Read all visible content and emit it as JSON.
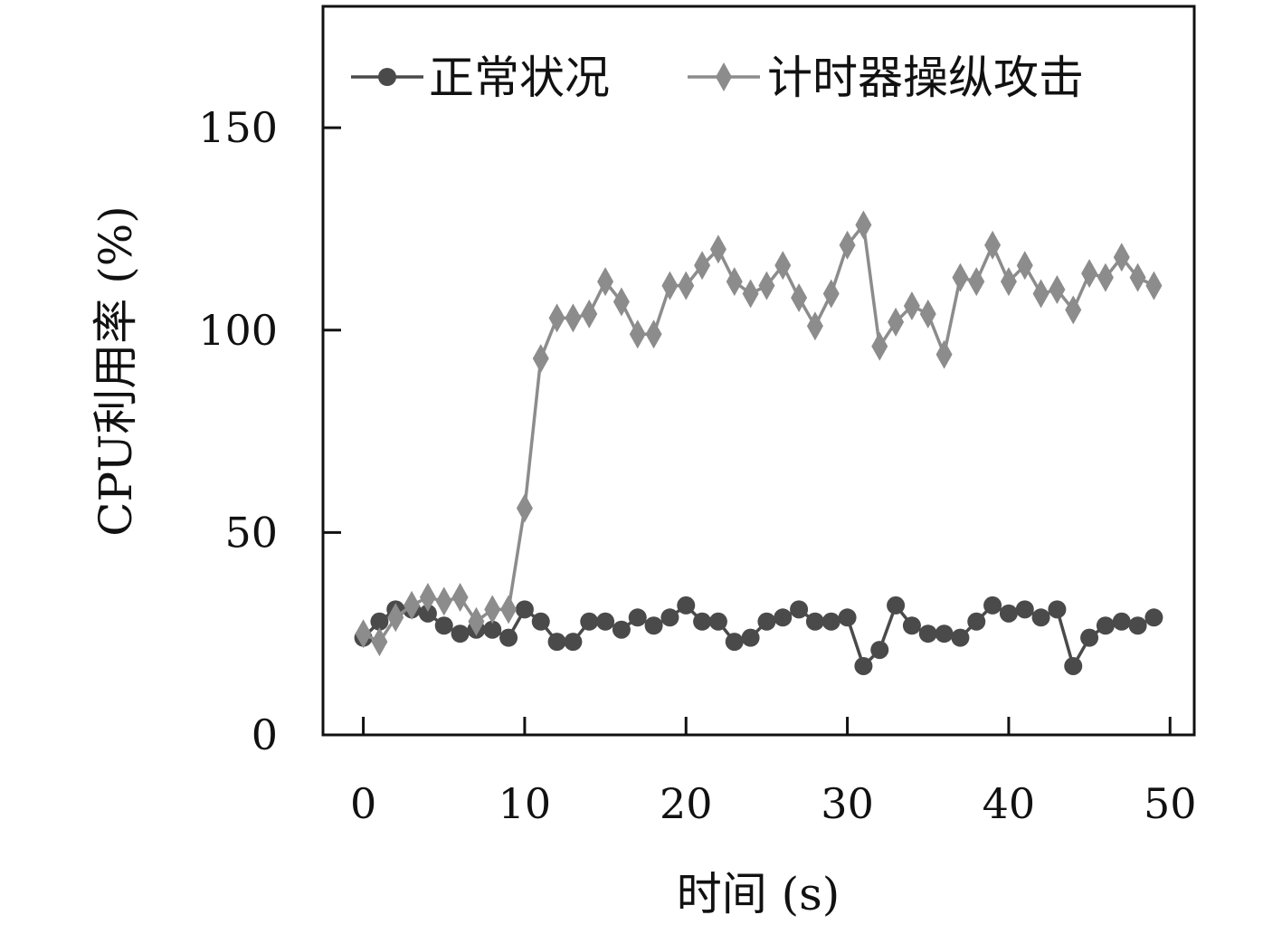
{
  "chart_data": {
    "type": "line",
    "xlabel": "时间 (s)",
    "ylabel": "CPU利用率 (%)",
    "xlim": [
      -2.5,
      51.5
    ],
    "ylim": [
      0,
      180
    ],
    "xticks": [
      0,
      10,
      20,
      30,
      40,
      50
    ],
    "yticks": [
      0,
      50,
      100,
      150
    ],
    "grid": false,
    "legend_position": "top",
    "x": [
      0,
      1,
      2,
      3,
      4,
      5,
      6,
      7,
      8,
      9,
      10,
      11,
      12,
      13,
      14,
      15,
      16,
      17,
      18,
      19,
      20,
      21,
      22,
      23,
      24,
      25,
      26,
      27,
      28,
      29,
      30,
      31,
      32,
      33,
      34,
      35,
      36,
      37,
      38,
      39,
      40,
      41,
      42,
      43,
      44,
      45,
      46,
      47,
      48,
      49
    ],
    "series": [
      {
        "name": "正常状况",
        "marker": "circle",
        "color": "#4a4a4a",
        "values": [
          24,
          28,
          31,
          31,
          30,
          27,
          25,
          26,
          26,
          24,
          31,
          28,
          23,
          23,
          28,
          28,
          26,
          29,
          27,
          29,
          32,
          28,
          28,
          23,
          24,
          28,
          29,
          31,
          28,
          28,
          29,
          17,
          21,
          32,
          27,
          25,
          25,
          24,
          28,
          32,
          30,
          31,
          29,
          31,
          17,
          24,
          27,
          28,
          27,
          29
        ]
      },
      {
        "name": "计时器操纵攻击",
        "marker": "diamond",
        "color": "#8c8c8c",
        "values": [
          25,
          23,
          29,
          32,
          34,
          33,
          34,
          28,
          31,
          31,
          56,
          93,
          103,
          103,
          104,
          112,
          107,
          99,
          99,
          111,
          111,
          116,
          120,
          112,
          109,
          111,
          116,
          108,
          101,
          109,
          121,
          126,
          96,
          102,
          106,
          104,
          94,
          113,
          112,
          121,
          112,
          116,
          109,
          110,
          105,
          114,
          113,
          118,
          113,
          111
        ]
      }
    ]
  }
}
